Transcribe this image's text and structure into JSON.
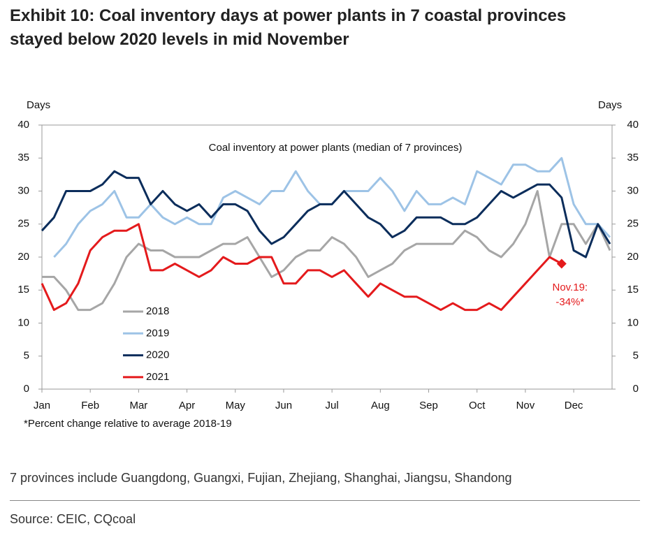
{
  "chart_data": {
    "type": "line",
    "title": "Exhibit 10: Coal inventory days at power plants in 7 coastal provinces stayed below 2020 levels in mid November",
    "subtitle": "Coal inventory at power plants (median of 7 provinces)",
    "y_label": "Days",
    "y2_label": "Days",
    "footnote": "*Percent change relative to average 2018-19",
    "note": "7 provinces include Guangdong, Guangxi, Fujian, Zhejiang, Shanghai, Jiangsu, Shandong",
    "source": "Source: CEIC, CQcoal",
    "categories": [
      "Jan",
      null,
      null,
      null,
      "Feb",
      null,
      null,
      null,
      "Mar",
      null,
      null,
      null,
      "Apr",
      null,
      null,
      null,
      "May",
      null,
      null,
      null,
      "Jun",
      null,
      null,
      null,
      "Jul",
      null,
      null,
      null,
      "Aug",
      null,
      null,
      null,
      "Sep",
      null,
      null,
      null,
      "Oct",
      null,
      null,
      null,
      "Nov",
      null,
      null,
      null,
      "Dec",
      null,
      null,
      null
    ],
    "ylim": [
      0,
      40
    ],
    "yticks": [
      0,
      5,
      10,
      15,
      20,
      25,
      30,
      35,
      40
    ],
    "y2lim": [
      0,
      40
    ],
    "y2ticks": [
      0,
      5,
      10,
      15,
      20,
      25,
      30,
      35,
      40
    ],
    "legend": "left",
    "series": [
      {
        "name": "2018",
        "color": "#a6a6a6",
        "values": [
          17,
          17,
          15,
          12,
          12,
          13,
          16,
          20,
          22,
          21,
          21,
          20,
          20,
          20,
          21,
          22,
          22,
          23,
          20,
          17,
          18,
          20,
          21,
          21,
          23,
          22,
          20,
          17,
          18,
          19,
          21,
          22,
          22,
          22,
          22,
          24,
          23,
          21,
          20,
          22,
          25,
          30,
          20,
          25,
          25,
          22,
          25,
          21
        ]
      },
      {
        "name": "2019",
        "color": "#9dc3e6",
        "values": [
          null,
          20,
          22,
          25,
          27,
          28,
          30,
          26,
          26,
          28,
          26,
          25,
          26,
          25,
          25,
          29,
          30,
          29,
          28,
          30,
          30,
          33,
          30,
          28,
          28,
          30,
          30,
          30,
          32,
          30,
          27,
          30,
          28,
          28,
          29,
          28,
          33,
          32,
          31,
          34,
          34,
          33,
          33,
          35,
          28,
          25,
          25,
          23
        ]
      },
      {
        "name": "2020",
        "color": "#0b2d5b",
        "values": [
          24,
          26,
          30,
          30,
          30,
          31,
          33,
          32,
          32,
          28,
          30,
          28,
          27,
          28,
          26,
          28,
          28,
          27,
          24,
          22,
          23,
          25,
          27,
          28,
          28,
          30,
          28,
          26,
          25,
          23,
          24,
          26,
          26,
          26,
          25,
          25,
          26,
          28,
          30,
          29,
          30,
          31,
          31,
          29,
          21,
          20,
          25,
          22
        ]
      },
      {
        "name": "2021",
        "color": "#e41a1c",
        "values": [
          16,
          12,
          13,
          16,
          21,
          23,
          24,
          24,
          25,
          18,
          18,
          19,
          18,
          17,
          18,
          20,
          19,
          19,
          20,
          20,
          16,
          16,
          18,
          18,
          17,
          18,
          16,
          14,
          16,
          15,
          14,
          14,
          13,
          12,
          13,
          12,
          12,
          13,
          12,
          14,
          16,
          18,
          20,
          19,
          null,
          null,
          null,
          null
        ]
      }
    ],
    "annotation": {
      "series": 3,
      "index": 43,
      "text": [
        "Nov.19:",
        "-34%*"
      ],
      "color": "#e41a1c"
    }
  }
}
